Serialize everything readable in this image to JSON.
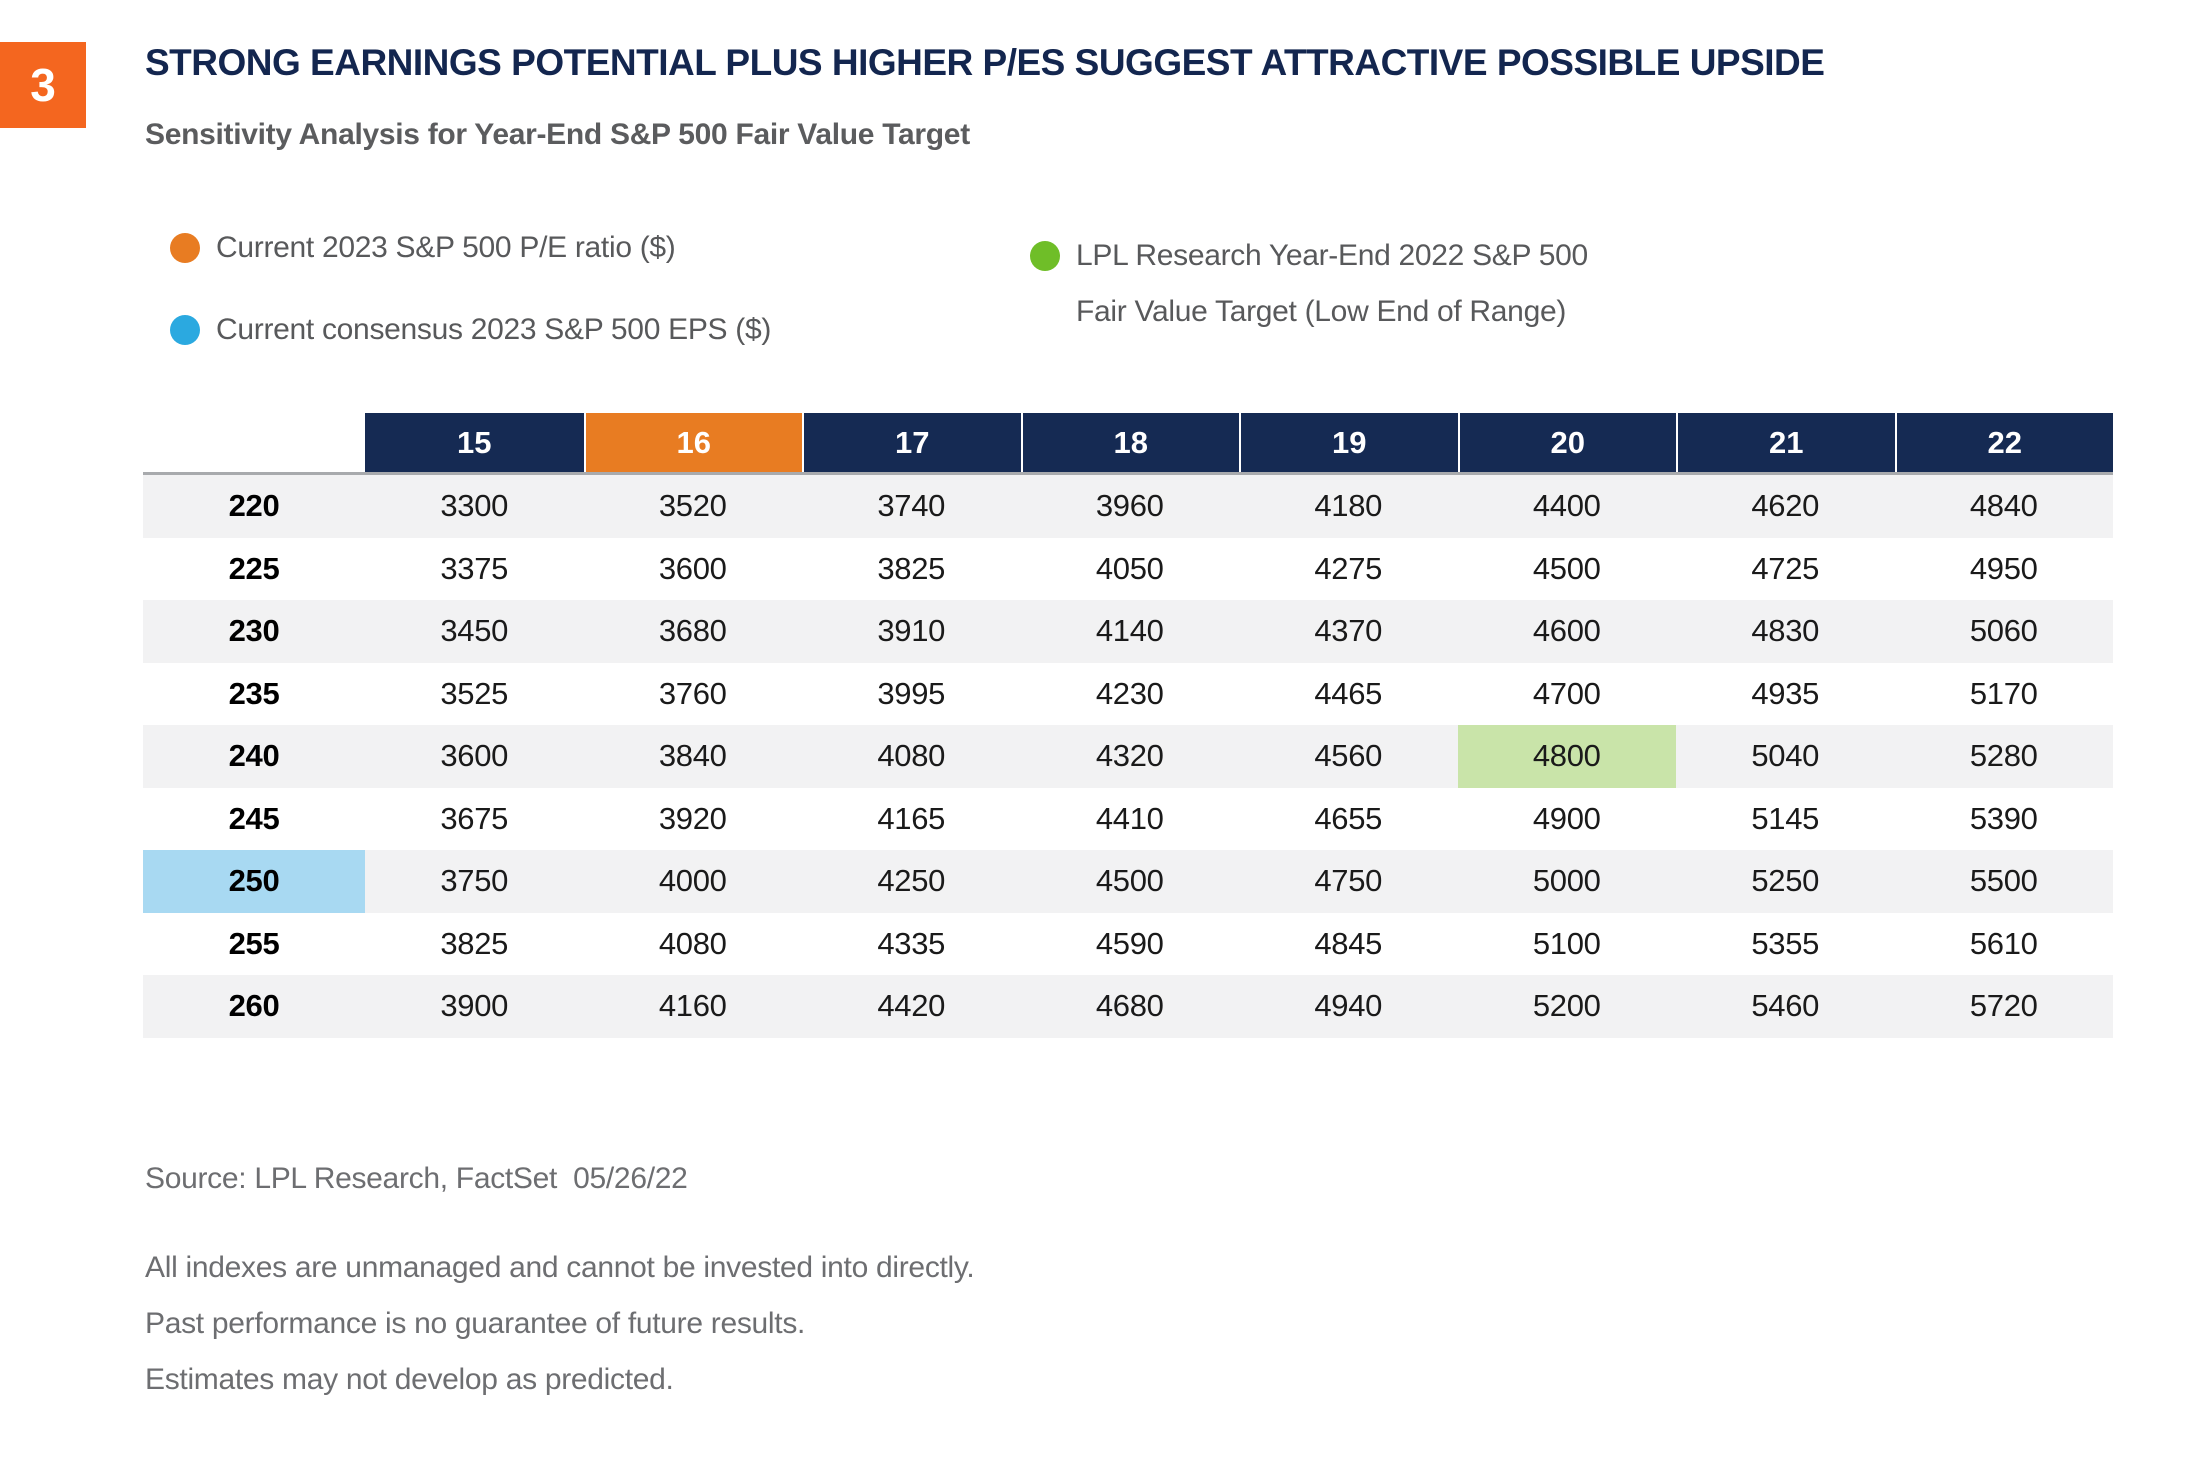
{
  "badge": {
    "number": "3"
  },
  "header": {
    "title": "STRONG EARNINGS POTENTIAL PLUS HIGHER P/ES SUGGEST ATTRACTIVE POSSIBLE UPSIDE",
    "subtitle": "Sensitivity Analysis for Year-End S&P 500 Fair Value Target"
  },
  "legend": {
    "items": [
      {
        "name": "current-pe-ratio",
        "color": "#E87C22",
        "label": "Current 2023 S&P 500 P/E ratio ($)"
      },
      {
        "name": "current-consensus-eps",
        "color": "#2BA9E0",
        "label": "Current consensus 2023 S&P 500 EPS ($)"
      },
      {
        "name": "lpl-fair-value-target",
        "color": "#6FBE28",
        "label": "LPL Research Year-End 2022 S&P 500\nFair Value Target (Low End of Range)"
      }
    ]
  },
  "chart_data": {
    "type": "table",
    "title": "Sensitivity Analysis for Year-End S&P 500 Fair Value Target",
    "columns_pe": [
      15,
      16,
      17,
      18,
      19,
      20,
      21,
      22
    ],
    "rows_eps": [
      220,
      225,
      230,
      235,
      240,
      245,
      250,
      255,
      260
    ],
    "values": [
      [
        3300,
        3520,
        3740,
        3960,
        4180,
        4400,
        4620,
        4840
      ],
      [
        3375,
        3600,
        3825,
        4050,
        4275,
        4500,
        4725,
        4950
      ],
      [
        3450,
        3680,
        3910,
        4140,
        4370,
        4600,
        4830,
        5060
      ],
      [
        3525,
        3760,
        3995,
        4230,
        4465,
        4700,
        4935,
        5170
      ],
      [
        3600,
        3840,
        4080,
        4320,
        4560,
        4800,
        5040,
        5280
      ],
      [
        3675,
        3920,
        4165,
        4410,
        4655,
        4900,
        5145,
        5390
      ],
      [
        3750,
        4000,
        4250,
        4500,
        4750,
        5000,
        5250,
        5500
      ],
      [
        3825,
        4080,
        4335,
        4590,
        4845,
        5100,
        5355,
        5610
      ],
      [
        3900,
        4160,
        4420,
        4680,
        4940,
        5200,
        5460,
        5720
      ]
    ],
    "highlights": {
      "pe_column": 16,
      "eps_row": 250,
      "cell": {
        "eps": 240,
        "pe": 20,
        "value": 4800
      },
      "colors": {
        "pe_column": "#E87C22",
        "eps_row": "#A8D9F2",
        "cell": "#C9E4A9"
      }
    },
    "layout_hints": {
      "header_background": "#152A53",
      "row_stripe": "#F2F2F3",
      "grid": "off",
      "legend_position": "top"
    }
  },
  "footer": {
    "source": "Source: LPL Research, FactSet  05/26/22",
    "disclaimer": "All indexes are unmanaged and cannot be invested into directly.\nPast performance is no guarantee of future results.\nEstimates may not develop as predicted."
  },
  "colors": {
    "badge_orange": "#F4661F",
    "title_navy": "#13264F",
    "header_navy": "#152A53",
    "header_orange": "#E87C22",
    "highlight_blue": "#A8D9F2",
    "highlight_green": "#C9E4A9",
    "text_gray": "#58595B",
    "footer_gray": "#6D6E71"
  }
}
